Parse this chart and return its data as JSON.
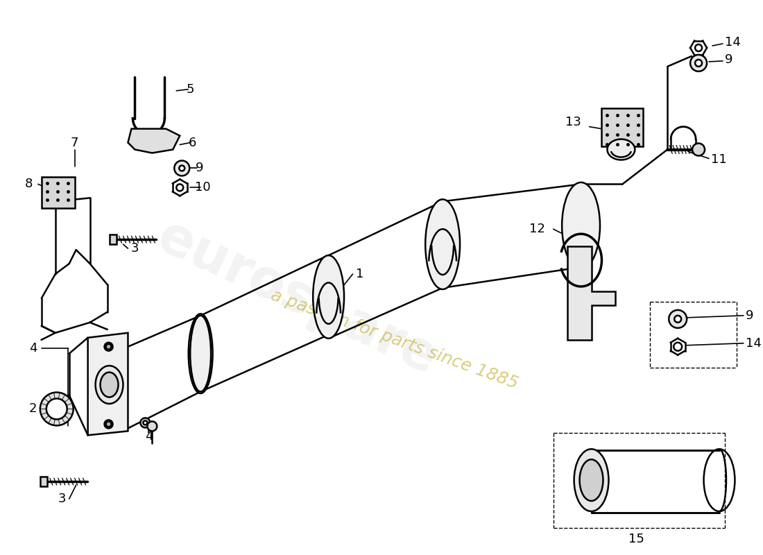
{
  "bg_color": "#ffffff",
  "line_color": "#000000",
  "lw": 1.8,
  "watermark1": "eurospare",
  "watermark2": "a passion for parts since 1885",
  "wm_color": "#c8b84a",
  "wm_alpha": 0.35
}
